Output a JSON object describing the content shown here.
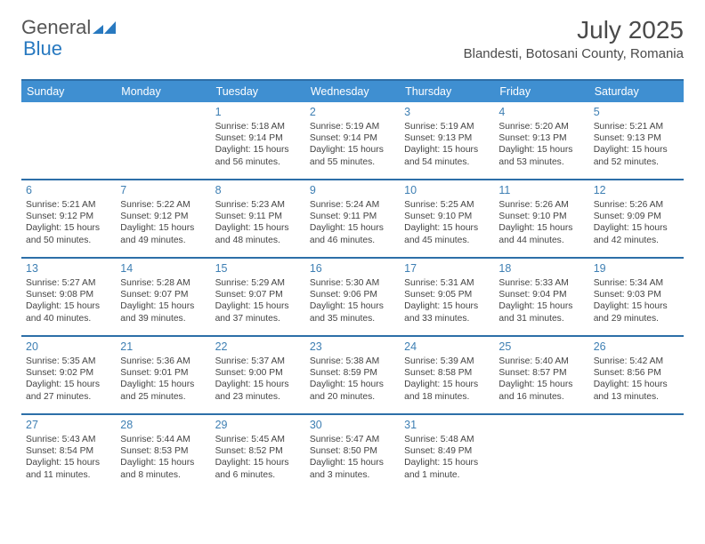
{
  "logo": {
    "text1": "General",
    "text2": "Blue"
  },
  "title": "July 2025",
  "location": "Blandesti, Botosani County, Romania",
  "colors": {
    "header_bg": "#3f8fd1",
    "border": "#2d6fa8",
    "daynum": "#3e7fb3",
    "text": "#444444",
    "title": "#4a4a4a",
    "white": "#ffffff"
  },
  "fonts": {
    "base": "Arial",
    "title_size": 28,
    "subtitle_size": 15,
    "header_size": 12.5,
    "cell_size": 10.3,
    "daynum_size": 12.5
  },
  "dayNames": [
    "Sunday",
    "Monday",
    "Tuesday",
    "Wednesday",
    "Thursday",
    "Friday",
    "Saturday"
  ],
  "weeks": [
    [
      null,
      null,
      {
        "n": "1",
        "sr": "5:18 AM",
        "ss": "9:14 PM",
        "dl": "15 hours and 56 minutes."
      },
      {
        "n": "2",
        "sr": "5:19 AM",
        "ss": "9:14 PM",
        "dl": "15 hours and 55 minutes."
      },
      {
        "n": "3",
        "sr": "5:19 AM",
        "ss": "9:13 PM",
        "dl": "15 hours and 54 minutes."
      },
      {
        "n": "4",
        "sr": "5:20 AM",
        "ss": "9:13 PM",
        "dl": "15 hours and 53 minutes."
      },
      {
        "n": "5",
        "sr": "5:21 AM",
        "ss": "9:13 PM",
        "dl": "15 hours and 52 minutes."
      }
    ],
    [
      {
        "n": "6",
        "sr": "5:21 AM",
        "ss": "9:12 PM",
        "dl": "15 hours and 50 minutes."
      },
      {
        "n": "7",
        "sr": "5:22 AM",
        "ss": "9:12 PM",
        "dl": "15 hours and 49 minutes."
      },
      {
        "n": "8",
        "sr": "5:23 AM",
        "ss": "9:11 PM",
        "dl": "15 hours and 48 minutes."
      },
      {
        "n": "9",
        "sr": "5:24 AM",
        "ss": "9:11 PM",
        "dl": "15 hours and 46 minutes."
      },
      {
        "n": "10",
        "sr": "5:25 AM",
        "ss": "9:10 PM",
        "dl": "15 hours and 45 minutes."
      },
      {
        "n": "11",
        "sr": "5:26 AM",
        "ss": "9:10 PM",
        "dl": "15 hours and 44 minutes."
      },
      {
        "n": "12",
        "sr": "5:26 AM",
        "ss": "9:09 PM",
        "dl": "15 hours and 42 minutes."
      }
    ],
    [
      {
        "n": "13",
        "sr": "5:27 AM",
        "ss": "9:08 PM",
        "dl": "15 hours and 40 minutes."
      },
      {
        "n": "14",
        "sr": "5:28 AM",
        "ss": "9:07 PM",
        "dl": "15 hours and 39 minutes."
      },
      {
        "n": "15",
        "sr": "5:29 AM",
        "ss": "9:07 PM",
        "dl": "15 hours and 37 minutes."
      },
      {
        "n": "16",
        "sr": "5:30 AM",
        "ss": "9:06 PM",
        "dl": "15 hours and 35 minutes."
      },
      {
        "n": "17",
        "sr": "5:31 AM",
        "ss": "9:05 PM",
        "dl": "15 hours and 33 minutes."
      },
      {
        "n": "18",
        "sr": "5:33 AM",
        "ss": "9:04 PM",
        "dl": "15 hours and 31 minutes."
      },
      {
        "n": "19",
        "sr": "5:34 AM",
        "ss": "9:03 PM",
        "dl": "15 hours and 29 minutes."
      }
    ],
    [
      {
        "n": "20",
        "sr": "5:35 AM",
        "ss": "9:02 PM",
        "dl": "15 hours and 27 minutes."
      },
      {
        "n": "21",
        "sr": "5:36 AM",
        "ss": "9:01 PM",
        "dl": "15 hours and 25 minutes."
      },
      {
        "n": "22",
        "sr": "5:37 AM",
        "ss": "9:00 PM",
        "dl": "15 hours and 23 minutes."
      },
      {
        "n": "23",
        "sr": "5:38 AM",
        "ss": "8:59 PM",
        "dl": "15 hours and 20 minutes."
      },
      {
        "n": "24",
        "sr": "5:39 AM",
        "ss": "8:58 PM",
        "dl": "15 hours and 18 minutes."
      },
      {
        "n": "25",
        "sr": "5:40 AM",
        "ss": "8:57 PM",
        "dl": "15 hours and 16 minutes."
      },
      {
        "n": "26",
        "sr": "5:42 AM",
        "ss": "8:56 PM",
        "dl": "15 hours and 13 minutes."
      }
    ],
    [
      {
        "n": "27",
        "sr": "5:43 AM",
        "ss": "8:54 PM",
        "dl": "15 hours and 11 minutes."
      },
      {
        "n": "28",
        "sr": "5:44 AM",
        "ss": "8:53 PM",
        "dl": "15 hours and 8 minutes."
      },
      {
        "n": "29",
        "sr": "5:45 AM",
        "ss": "8:52 PM",
        "dl": "15 hours and 6 minutes."
      },
      {
        "n": "30",
        "sr": "5:47 AM",
        "ss": "8:50 PM",
        "dl": "15 hours and 3 minutes."
      },
      {
        "n": "31",
        "sr": "5:48 AM",
        "ss": "8:49 PM",
        "dl": "15 hours and 1 minute."
      },
      null,
      null
    ]
  ],
  "labels": {
    "sunrise": "Sunrise:",
    "sunset": "Sunset:",
    "daylight": "Daylight:"
  }
}
